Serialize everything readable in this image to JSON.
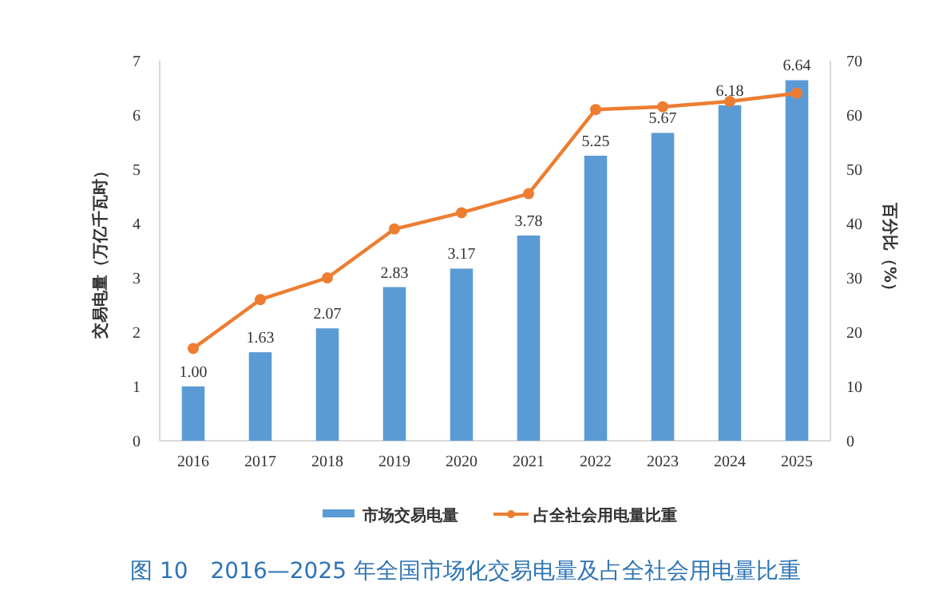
{
  "chart_data": {
    "type": "bar",
    "title": "图 10　2016—2025 年全国市场化交易电量及占全社会用电量比重",
    "ylabel": "交易电量（万亿千瓦时）",
    "y2label": "百分比（%）",
    "categories": [
      "2016",
      "2017",
      "2018",
      "2019",
      "2020",
      "2021",
      "2022",
      "2023",
      "2024",
      "2025"
    ],
    "series": [
      {
        "name": "市场交易电量",
        "color": "#5b9bd5",
        "values": [
          1.0,
          1.63,
          2.07,
          2.83,
          3.17,
          3.78,
          5.25,
          5.67,
          6.18,
          6.64
        ],
        "value_labels": [
          "1.00",
          "1.63",
          "2.07",
          "2.83",
          "3.17",
          "3.78",
          "5.25",
          "5.67",
          "6.18",
          "6.64"
        ]
      },
      {
        "name": "占全社会用电量比重",
        "type": "line",
        "axis": "y2",
        "color": "#ed7d31",
        "marker": "circle",
        "values": [
          17,
          26,
          30,
          39,
          42,
          45.5,
          61,
          61.5,
          62.5,
          64
        ]
      }
    ],
    "ylim": [
      0,
      7
    ],
    "yticks": [
      0,
      1,
      2,
      3,
      4,
      5,
      6,
      7
    ],
    "y2lim": [
      0,
      70
    ],
    "y2ticks": [
      0,
      10,
      20,
      30,
      40,
      50,
      60,
      70
    ],
    "legend": "bottom",
    "grid": false
  }
}
